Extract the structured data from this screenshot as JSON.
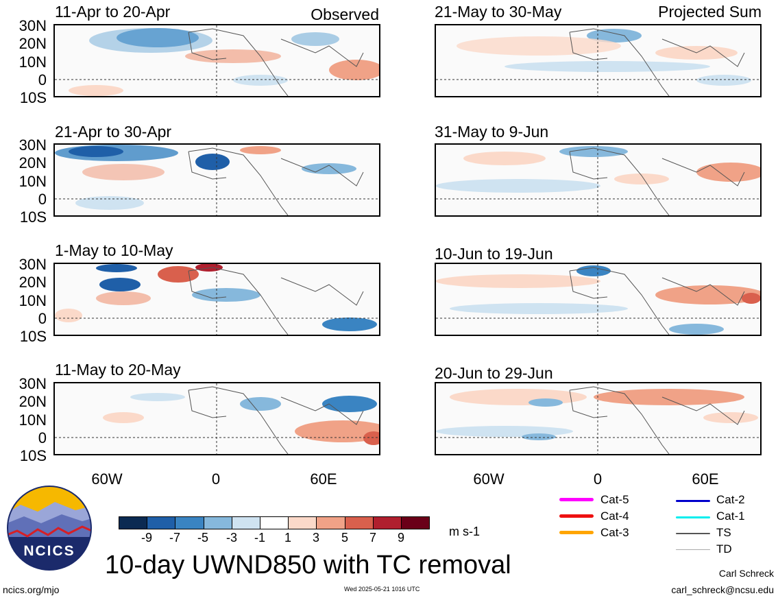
{
  "panels_left": [
    {
      "title": "11-Apr to 20-Apr",
      "tag": "Observed"
    },
    {
      "title": "21-Apr to 30-Apr",
      "tag": ""
    },
    {
      "title": "1-May to 10-May",
      "tag": ""
    },
    {
      "title": "11-May to 20-May",
      "tag": ""
    }
  ],
  "panels_right": [
    {
      "title": "21-May to 30-May",
      "tag": "Projected Sum"
    },
    {
      "title": "31-May to 9-Jun",
      "tag": ""
    },
    {
      "title": "10-Jun to 19-Jun",
      "tag": ""
    },
    {
      "title": "20-Jun to 29-Jun",
      "tag": ""
    }
  ],
  "lat_labels": [
    "30N",
    "20N",
    "10N",
    "0",
    "10S"
  ],
  "lon_labels": [
    "60W",
    "0",
    "60E"
  ],
  "colorbar": {
    "ticks": [
      "-9",
      "-7",
      "-5",
      "-3",
      "-1",
      "1",
      "3",
      "5",
      "7",
      "9"
    ],
    "colors": [
      "#0b2a52",
      "#1f5fa8",
      "#3a84c2",
      "#86b8dc",
      "#cfe3f1",
      "#ffffff",
      "#fbd9c9",
      "#f0a287",
      "#d9604d",
      "#b01f2e",
      "#6a0018"
    ],
    "units": "m s-1"
  },
  "legend": {
    "items": [
      {
        "label": "Cat-5",
        "color": "#ff00ff"
      },
      {
        "label": "Cat-4",
        "color": "#ee1111"
      },
      {
        "label": "Cat-3",
        "color": "#ffa500"
      },
      {
        "label": "Cat-2",
        "color": "#0000cc"
      },
      {
        "label": "Cat-1",
        "color": "#00eeee"
      },
      {
        "label": "TS",
        "color": "#555555"
      },
      {
        "label": "TD",
        "color": "#aaaaaa"
      }
    ]
  },
  "logo_text": "NCICS",
  "main_title": "10-day UWND850 with TC removal",
  "url": "ncics.org/mjo",
  "timestamp": "Wed 2025-05-21 1016 UTC",
  "author": "Carl Schreck",
  "email": "carl_schreck@ncsu.edu"
}
